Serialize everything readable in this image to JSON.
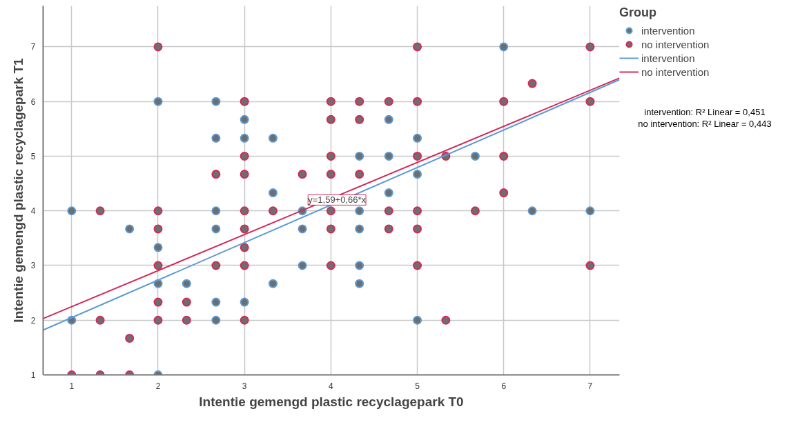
{
  "chart_data": {
    "type": "scatter",
    "xlabel": "Intentie gemengd plastic recyclagepark T0",
    "ylabel": "Intentie gemengd plastic recyclagepark T1",
    "legend_title": "Group",
    "xlim": [
      0.67,
      7.34
    ],
    "ylim": [
      1,
      7.75
    ],
    "xticks": [
      1,
      2,
      3,
      4,
      5,
      6,
      7
    ],
    "yticks": [
      1,
      2,
      3,
      4,
      5,
      6,
      7
    ],
    "grid": true,
    "legend": "right",
    "marker": "circle",
    "line_style": "solid",
    "series": [
      {
        "name": "intervention",
        "color": "#5b9bd5",
        "x": [
          6,
          2,
          2.67,
          3,
          4.67,
          2.67,
          3,
          3.33,
          5,
          4.33,
          4.67,
          5.67,
          5,
          3.33,
          4.67,
          1,
          2.67,
          3.67,
          4.33,
          6.33,
          7,
          1.67,
          2.67,
          3.67,
          4.33,
          2,
          3.67,
          4.33,
          2,
          2.33,
          3.33,
          4.33,
          2.67,
          3,
          1,
          2.67,
          5,
          2
        ],
        "values": [
          7,
          6,
          6,
          5.67,
          5.67,
          5.33,
          5.33,
          5.33,
          5.33,
          5,
          5,
          5,
          4.67,
          4.33,
          4.33,
          4,
          4,
          4,
          4,
          4,
          4,
          3.67,
          3.67,
          3.67,
          3.67,
          3.33,
          3,
          3,
          2.67,
          2.67,
          2.67,
          2.67,
          2.33,
          2.33,
          2,
          2,
          2,
          1
        ]
      },
      {
        "name": "no intervention",
        "color": "#d42a58",
        "x": [
          2,
          5,
          7,
          6.33,
          3,
          4,
          4.33,
          4.67,
          5,
          6,
          7,
          4,
          4.33,
          3,
          4,
          5,
          5.33,
          6,
          2.67,
          3,
          3.67,
          4,
          4.33,
          6,
          1.33,
          2,
          3,
          3.33,
          4,
          4.67,
          5,
          5.67,
          2,
          3,
          4,
          4.67,
          5,
          3,
          2,
          2.67,
          3,
          4,
          5,
          7,
          2,
          2.33,
          1.33,
          2,
          2.33,
          3,
          5.33,
          1.67,
          1,
          1.33,
          1.67
        ],
        "values": [
          7,
          7,
          7,
          6.33,
          6,
          6,
          6,
          6,
          6,
          6,
          6,
          5.67,
          5.67,
          5,
          5,
          5,
          5,
          5,
          4.67,
          4.67,
          4.67,
          4.67,
          4.67,
          4.33,
          4,
          4,
          4,
          4,
          4,
          4,
          4,
          4,
          3.67,
          3.67,
          3.67,
          3.67,
          3.67,
          3.33,
          3,
          3,
          3,
          3,
          3,
          3,
          2.33,
          2.33,
          2,
          2,
          2,
          2,
          2,
          1.67,
          1,
          1,
          1
        ]
      },
      {
        "name": "intervention",
        "type": "line",
        "marker": "none",
        "color": "#5b9bd5",
        "x": [
          0.67,
          7.34
        ],
        "values": [
          1.82,
          6.4
        ]
      },
      {
        "name": "no intervention",
        "type": "line",
        "marker": "none",
        "color": "#d42a58",
        "x": [
          0.67,
          7.34
        ],
        "values": [
          2.03,
          6.43
        ]
      }
    ],
    "annotations": [
      {
        "text": "y=1,59+0,66*x",
        "x": 4.07,
        "y": 4.2
      },
      "intervention: R² Linear = 0,451",
      "no intervention: R² Linear = 0,443"
    ]
  }
}
